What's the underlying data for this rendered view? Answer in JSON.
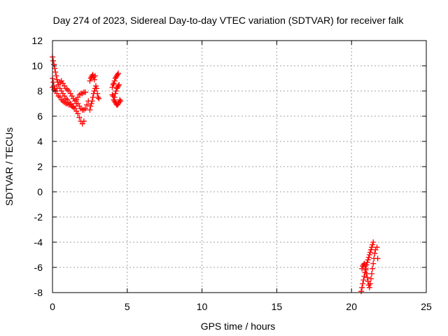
{
  "chart_data": {
    "type": "scatter",
    "title": "Day 274 of 2023, Sidereal Day-to-day VTEC variation (SDTVAR) for receiver falk",
    "xlabel": "GPS time / hours",
    "ylabel": "SDTVAR / TECUs",
    "xlim": [
      0,
      25
    ],
    "ylim": [
      -8,
      12
    ],
    "xticks": [
      0,
      5,
      10,
      15,
      20,
      25
    ],
    "yticks": [
      -8,
      -6,
      -4,
      -2,
      0,
      2,
      4,
      6,
      8,
      10,
      12
    ],
    "xtick_labels": [
      "0",
      "5",
      "10",
      "15",
      "20",
      "25"
    ],
    "ytick_labels": [
      "-8",
      "-6",
      "-4",
      "-2",
      "0",
      "2",
      "4",
      "6",
      "8",
      "10",
      "12"
    ],
    "grid": true,
    "marker": "plus",
    "marker_color": "#ff0000",
    "series": [
      {
        "points": [
          [
            0.0,
            10.7
          ],
          [
            0.05,
            10.4
          ],
          [
            0.1,
            10.1
          ],
          [
            0.15,
            9.8
          ],
          [
            0.2,
            9.5
          ],
          [
            0.25,
            9.2
          ],
          [
            0.3,
            8.9
          ],
          [
            0.35,
            8.7
          ],
          [
            0.4,
            8.5
          ],
          [
            0.5,
            8.2
          ],
          [
            0.6,
            8.0
          ],
          [
            0.7,
            7.8
          ],
          [
            0.8,
            7.6
          ],
          [
            0.9,
            7.4
          ],
          [
            1.0,
            7.3
          ],
          [
            1.1,
            7.1
          ],
          [
            1.2,
            7.0
          ],
          [
            1.3,
            6.8
          ],
          [
            1.4,
            6.7
          ],
          [
            1.5,
            6.6
          ],
          [
            1.6,
            6.4
          ],
          [
            1.7,
            6.2
          ],
          [
            1.8,
            5.9
          ],
          [
            1.9,
            5.6
          ],
          [
            2.0,
            5.4
          ],
          [
            2.1,
            5.6
          ],
          [
            0.0,
            9.0
          ],
          [
            0.05,
            8.7
          ],
          [
            0.1,
            8.4
          ],
          [
            0.15,
            8.2
          ],
          [
            0.2,
            8.0
          ],
          [
            0.3,
            7.8
          ],
          [
            0.4,
            7.6
          ],
          [
            0.5,
            7.5
          ],
          [
            0.6,
            7.3
          ],
          [
            0.7,
            7.2
          ],
          [
            0.8,
            7.1
          ],
          [
            0.9,
            7.0
          ],
          [
            1.0,
            7.0
          ],
          [
            1.1,
            6.9
          ],
          [
            1.2,
            6.9
          ],
          [
            1.3,
            6.8
          ],
          [
            1.4,
            6.8
          ],
          [
            0.0,
            8.3
          ],
          [
            0.1,
            8.1
          ],
          [
            0.2,
            8.0
          ],
          [
            0.3,
            8.2
          ],
          [
            0.4,
            8.5
          ],
          [
            0.5,
            8.7
          ],
          [
            0.6,
            8.8
          ],
          [
            0.7,
            8.6
          ],
          [
            0.8,
            8.4
          ],
          [
            0.9,
            8.2
          ],
          [
            1.0,
            8.1
          ],
          [
            1.1,
            8.0
          ],
          [
            1.2,
            7.8
          ],
          [
            1.3,
            7.6
          ],
          [
            1.4,
            7.4
          ],
          [
            1.5,
            7.2
          ],
          [
            1.6,
            7.0
          ],
          [
            1.6,
            7.3
          ],
          [
            1.7,
            7.5
          ],
          [
            1.8,
            7.7
          ],
          [
            1.9,
            7.8
          ],
          [
            2.0,
            7.8
          ],
          [
            2.1,
            7.9
          ],
          [
            2.2,
            7.9
          ],
          [
            1.7,
            7.0
          ],
          [
            1.8,
            6.8
          ],
          [
            1.9,
            6.6
          ],
          [
            2.0,
            6.5
          ],
          [
            2.1,
            6.5
          ],
          [
            2.2,
            6.6
          ],
          [
            2.3,
            6.9
          ],
          [
            2.4,
            7.2
          ],
          [
            2.5,
            8.8
          ],
          [
            2.55,
            9.0
          ],
          [
            2.6,
            9.1
          ],
          [
            2.65,
            9.2
          ],
          [
            2.7,
            9.3
          ],
          [
            2.75,
            9.1
          ],
          [
            2.8,
            8.9
          ],
          [
            2.85,
            9.2
          ],
          [
            2.5,
            6.5
          ],
          [
            2.55,
            6.8
          ],
          [
            2.6,
            7.0
          ],
          [
            2.65,
            7.2
          ],
          [
            2.7,
            7.5
          ],
          [
            2.75,
            7.8
          ],
          [
            2.8,
            8.0
          ],
          [
            2.85,
            8.2
          ],
          [
            2.9,
            8.4
          ],
          [
            2.95,
            8.2
          ],
          [
            3.0,
            7.8
          ],
          [
            3.05,
            7.5
          ],
          [
            3.1,
            7.4
          ],
          [
            4.0,
            7.7
          ],
          [
            4.05,
            7.6
          ],
          [
            4.1,
            7.3
          ],
          [
            4.15,
            7.2
          ],
          [
            4.2,
            7.1
          ],
          [
            4.25,
            7.0
          ],
          [
            4.3,
            6.9
          ],
          [
            4.35,
            6.9
          ],
          [
            4.4,
            7.0
          ],
          [
            4.45,
            7.1
          ],
          [
            4.5,
            7.3
          ],
          [
            4.55,
            7.2
          ],
          [
            4.0,
            8.3
          ],
          [
            4.05,
            8.5
          ],
          [
            4.1,
            8.6
          ],
          [
            4.15,
            8.8
          ],
          [
            4.2,
            9.0
          ],
          [
            4.25,
            9.1
          ],
          [
            4.3,
            9.2
          ],
          [
            4.35,
            9.3
          ],
          [
            4.4,
            9.4
          ],
          [
            4.15,
            7.5
          ],
          [
            4.2,
            7.8
          ],
          [
            4.25,
            8.0
          ],
          [
            4.3,
            8.2
          ],
          [
            4.35,
            8.3
          ],
          [
            4.4,
            8.4
          ],
          [
            4.45,
            8.5
          ],
          [
            20.65,
            -7.9
          ],
          [
            20.7,
            -7.6
          ],
          [
            20.75,
            -7.3
          ],
          [
            20.8,
            -7.0
          ],
          [
            20.85,
            -6.7
          ],
          [
            20.9,
            -6.4
          ],
          [
            20.95,
            -6.1
          ],
          [
            21.0,
            -5.8
          ],
          [
            21.05,
            -5.6
          ],
          [
            21.1,
            -5.4
          ],
          [
            21.15,
            -5.2
          ],
          [
            21.2,
            -5.0
          ],
          [
            21.25,
            -4.8
          ],
          [
            21.3,
            -4.6
          ],
          [
            21.35,
            -4.4
          ],
          [
            21.4,
            -4.2
          ],
          [
            21.45,
            -4.0
          ],
          [
            20.7,
            -6.1
          ],
          [
            20.75,
            -5.9
          ],
          [
            20.8,
            -5.8
          ],
          [
            20.85,
            -5.7
          ],
          [
            20.9,
            -5.9
          ],
          [
            20.95,
            -6.2
          ],
          [
            21.0,
            -6.5
          ],
          [
            21.05,
            -6.8
          ],
          [
            21.1,
            -7.1
          ],
          [
            21.15,
            -7.4
          ],
          [
            21.2,
            -7.6
          ],
          [
            21.25,
            -7.3
          ],
          [
            21.3,
            -6.9
          ],
          [
            21.35,
            -6.5
          ],
          [
            21.4,
            -6.1
          ],
          [
            21.45,
            -5.7
          ],
          [
            21.5,
            -5.3
          ],
          [
            21.55,
            -4.9
          ],
          [
            21.6,
            -4.6
          ],
          [
            21.7,
            -4.4
          ],
          [
            21.75,
            -5.3
          ]
        ]
      }
    ]
  }
}
